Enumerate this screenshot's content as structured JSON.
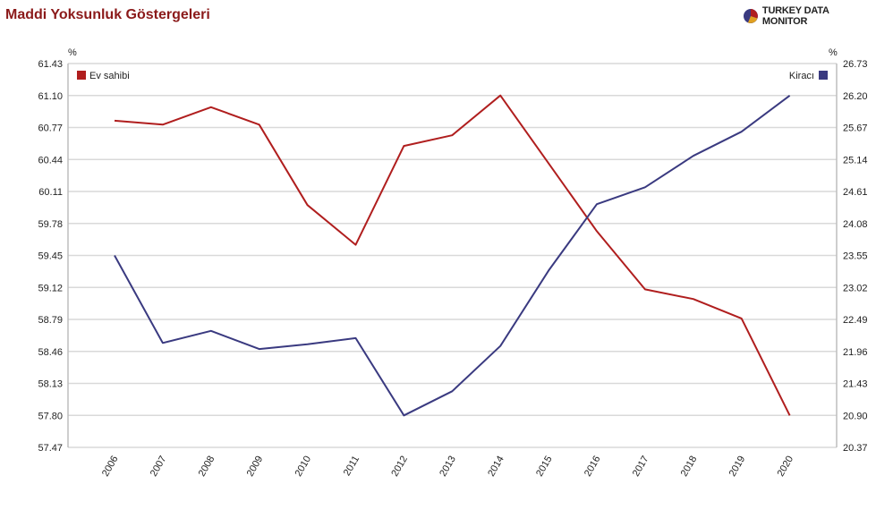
{
  "header": {
    "title": "Maddi Yoksunluk Göstergeleri",
    "brand": "TURKEY DATA MONITOR"
  },
  "colors": {
    "ev_sahibi": "#b01e1e",
    "kiraci": "#3a3a80",
    "grid": "#d9d9d9",
    "title": "#8b1a1a"
  },
  "chart_data": {
    "type": "line",
    "title": "Maddi Yoksunluk Göstergeleri",
    "x": [
      "2006",
      "2007",
      "2008",
      "2009",
      "2010",
      "2011",
      "2012",
      "2013",
      "2014",
      "2015",
      "2016",
      "2017",
      "2018",
      "2019",
      "2020"
    ],
    "y_left": {
      "unit": "%",
      "range": [
        57.47,
        61.43
      ],
      "ticks": [
        "57.47",
        "57.80",
        "58.13",
        "58.46",
        "58.79",
        "59.12",
        "59.45",
        "59.78",
        "60.11",
        "60.44",
        "60.77",
        "61.10",
        "61.43"
      ]
    },
    "y_right": {
      "unit": "%",
      "range": [
        20.37,
        26.73
      ],
      "ticks": [
        "20.37",
        "20.90",
        "21.43",
        "21.96",
        "22.49",
        "23.02",
        "23.55",
        "24.08",
        "24.61",
        "25.14",
        "25.67",
        "26.20",
        "26.73"
      ]
    },
    "series": [
      {
        "name": "Ev sahibi",
        "axis": "left",
        "values": [
          60.84,
          60.8,
          60.98,
          60.8,
          59.97,
          59.56,
          60.58,
          60.69,
          61.1,
          60.4,
          59.7,
          59.1,
          59.0,
          58.8,
          57.8
        ]
      },
      {
        "name": "Kiracı",
        "axis": "right",
        "values": [
          23.55,
          22.1,
          22.3,
          22.0,
          22.08,
          22.18,
          20.9,
          21.3,
          22.05,
          23.3,
          24.4,
          24.68,
          25.2,
          25.6,
          26.2
        ]
      }
    ],
    "grid": true,
    "legend": [
      "top-left",
      "top-right"
    ]
  }
}
